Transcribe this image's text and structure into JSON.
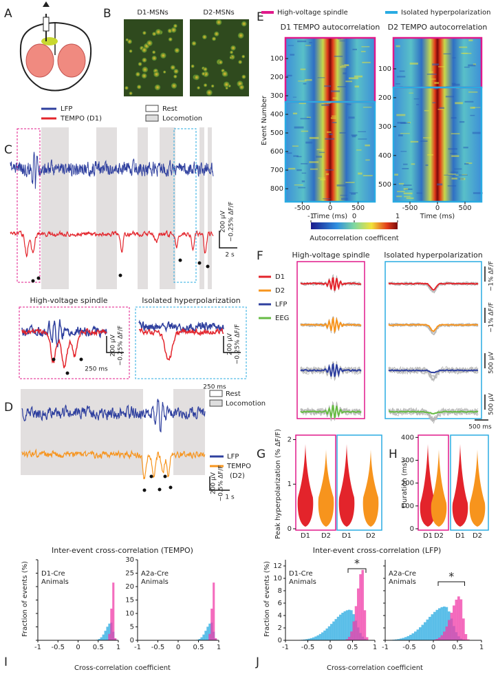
{
  "A": {
    "letter": "A"
  },
  "B": {
    "letter": "B",
    "titles": [
      "D1-MSNs",
      "D2-MSNs"
    ]
  },
  "C": {
    "letter": "C",
    "trace_legend": [
      "LFP",
      "TEMPO (D1)"
    ],
    "state_legend": [
      "Rest",
      "Locomotion"
    ],
    "scale": [
      "200 μV",
      "−0.25% ΔF/F",
      "2 s"
    ],
    "insets": [
      {
        "title": "High-voltage spindle",
        "scale": [
          "200 μV",
          "−0.25% ΔF/F",
          "250 ms"
        ]
      },
      {
        "title": "Isolated hyperpolarization",
        "scale": [
          "200 μV",
          "−0.25% ΔF/F",
          "250 ms"
        ]
      }
    ]
  },
  "D": {
    "letter": "D",
    "state_legend": [
      "Rest",
      "Locomotion"
    ],
    "trace_legend": [
      "LFP",
      "TEMPO",
      "(D2)"
    ],
    "scale": [
      "200 μV",
      "−0.5% ΔF/F",
      "1 s"
    ]
  },
  "E": {
    "letter": "E",
    "legend": [
      "High-voltage spindle",
      "Isolated hyperpolarization"
    ],
    "ylabel": "Event Number",
    "plots": [
      {
        "title": "D1 TEMPO autocorrelation",
        "xlabel": "Time (ms)",
        "ylim": [
          0,
          870
        ],
        "yticks": [
          100,
          200,
          300,
          400,
          500,
          600,
          700,
          800
        ],
        "xlim": [
          -800,
          800
        ],
        "xticks": [
          -500,
          0,
          500
        ]
      },
      {
        "title": "D2 TEMPO autocorrelation",
        "xlabel": "Time (ms)",
        "ylim": [
          0,
          560
        ],
        "yticks": [
          100,
          200,
          300,
          400,
          500
        ],
        "xlim": [
          -800,
          800
        ],
        "xticks": [
          -500,
          0,
          500
        ]
      }
    ],
    "colorbar": {
      "label": "Autocorrelation coefficent",
      "lim": [
        -1,
        1
      ],
      "ticks": [
        -1,
        0,
        1
      ]
    }
  },
  "F": {
    "letter": "F",
    "titles": [
      "High-voltage spindle",
      "Isolated hyperpolarization"
    ],
    "legend": [
      "D1",
      "D2",
      "LFP",
      "EEG"
    ],
    "scale": [
      "−1% ΔF/F",
      "−1% ΔF/F",
      "500 μV",
      "500 μV",
      "500 ms"
    ]
  },
  "G": {
    "letter": "G",
    "ylabel": "Peak hyperpolarization (% ΔF/F)",
    "ylim": [
      0,
      2.1
    ],
    "yticks": [
      0,
      1,
      2
    ],
    "categories": [
      "D1",
      "D2",
      "D1",
      "D2"
    ]
  },
  "H": {
    "letter": "H",
    "ylabel": "Duration (ms)",
    "ylim": [
      0,
      410
    ],
    "yticks": [
      0,
      100,
      200,
      300,
      400
    ],
    "categories": [
      "D1",
      "D2",
      "D1",
      "D2"
    ]
  },
  "I": {
    "letter": "I",
    "title": "Inter-event cross-correlation (TEMPO)",
    "ylabel": "Fraction of events (%)",
    "xlabel": "Cross-correlation coefficient",
    "ylim": [
      0,
      30
    ],
    "yticks": [
      0,
      5,
      10,
      15,
      20,
      25,
      30
    ],
    "xlim": [
      -1,
      1
    ],
    "xticks": [
      -1,
      -0.5,
      0,
      0.5,
      1
    ],
    "groups": [
      [
        "D1-Cre",
        "Animals"
      ],
      [
        "A2a-Cre",
        "Animals"
      ]
    ]
  },
  "J": {
    "letter": "J",
    "title": "Inter-event cross-correlation (LFP)",
    "ylabel": "Fraction of events (%)",
    "xlabel": "Cross-correlation coefficient",
    "ylim": [
      0,
      13
    ],
    "yticks": [
      0,
      2,
      4,
      6,
      8,
      10,
      12
    ],
    "xlim": [
      -1,
      1
    ],
    "xticks": [
      -1,
      -0.5,
      0,
      0.5,
      1
    ],
    "groups": [
      [
        "D1-Cre",
        "Animals"
      ],
      [
        "A2a-Cre",
        "Animals"
      ]
    ],
    "significance": "*"
  }
}
